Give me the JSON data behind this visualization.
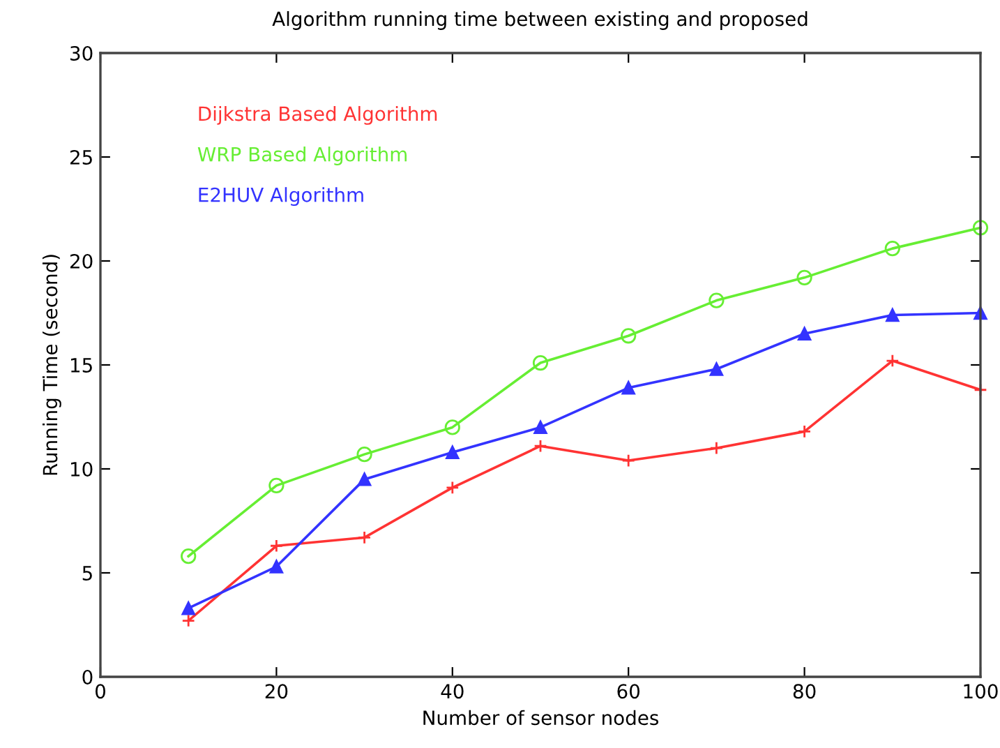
{
  "chart_data": {
    "type": "line",
    "title": "Algorithm running time between existing and proposed",
    "xlabel": "Number of sensor nodes",
    "ylabel": "Running Time (second)",
    "x": [
      10,
      20,
      30,
      40,
      50,
      60,
      70,
      80,
      90,
      100
    ],
    "series": [
      {
        "name": "Dijkstra Based Algorithm",
        "color": "#ff3333",
        "marker": "cross",
        "values": [
          2.7,
          6.3,
          6.7,
          9.1,
          11.1,
          10.4,
          11.0,
          11.8,
          15.2,
          13.8
        ]
      },
      {
        "name": "WRP Based Algorithm",
        "color": "#66ee33",
        "marker": "circle",
        "values": [
          5.8,
          9.2,
          10.7,
          12.0,
          15.1,
          16.4,
          18.1,
          19.2,
          20.6,
          21.6
        ]
      },
      {
        "name": "E2HUV Algorithm",
        "color": "#3333ff",
        "marker": "triangle",
        "values": [
          3.3,
          5.3,
          9.5,
          10.8,
          12.0,
          13.9,
          14.8,
          16.5,
          17.4,
          17.5
        ]
      }
    ],
    "xlim": [
      0,
      100
    ],
    "ylim": [
      0,
      30
    ],
    "xticks": [
      0,
      20,
      40,
      60,
      80,
      100
    ],
    "yticks": [
      0,
      5,
      10,
      15,
      20,
      25,
      30
    ],
    "grid": false,
    "legend": "top left",
    "line_style": "solid"
  }
}
